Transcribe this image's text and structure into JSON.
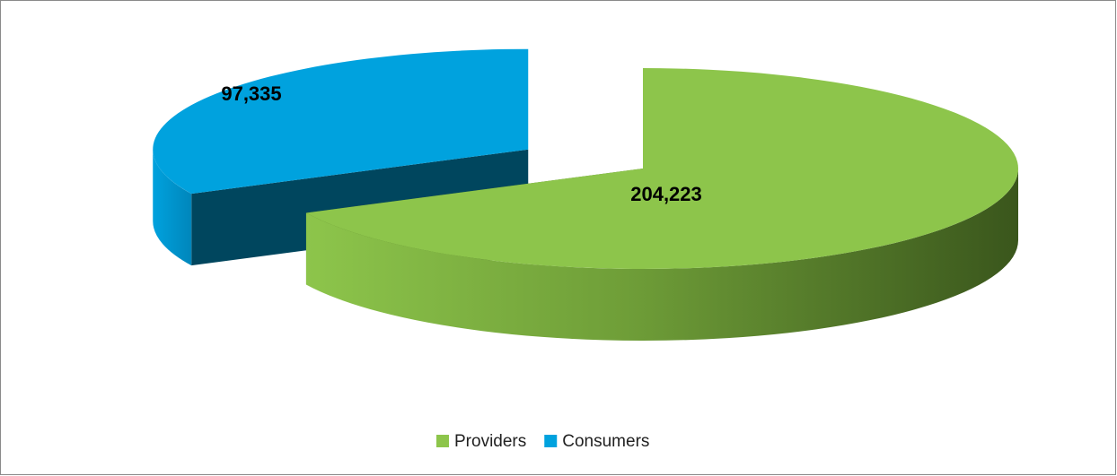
{
  "chart_data": {
    "type": "pie",
    "categories": [
      "Providers",
      "Consumers"
    ],
    "values": [
      204223,
      97335
    ],
    "value_labels": [
      "204,223",
      "97,335"
    ],
    "colors": [
      "#8dc54b",
      "#00a2de"
    ],
    "legend": "bottom"
  }
}
